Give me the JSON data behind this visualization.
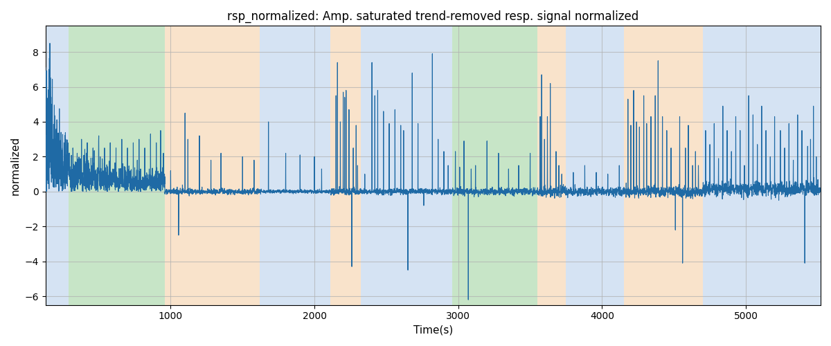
{
  "title": "rsp_normalized: Amp. saturated trend-removed resp. signal normalized",
  "xlabel": "Time(s)",
  "ylabel": "normalized",
  "xlim": [
    130,
    5520
  ],
  "ylim": [
    -6.5,
    9.5
  ],
  "line_color": "#1f6aa5",
  "line_width": 0.8,
  "bands": [
    {
      "xmin": 130,
      "xmax": 290,
      "color": "#adc8e8",
      "alpha": 0.5
    },
    {
      "xmin": 290,
      "xmax": 960,
      "color": "#90cc90",
      "alpha": 0.5
    },
    {
      "xmin": 960,
      "xmax": 1620,
      "color": "#f5c898",
      "alpha": 0.5
    },
    {
      "xmin": 1620,
      "xmax": 2110,
      "color": "#adc8e8",
      "alpha": 0.5
    },
    {
      "xmin": 2110,
      "xmax": 2320,
      "color": "#f5c898",
      "alpha": 0.5
    },
    {
      "xmin": 2320,
      "xmax": 2960,
      "color": "#adc8e8",
      "alpha": 0.5
    },
    {
      "xmin": 2960,
      "xmax": 3080,
      "color": "#90cc90",
      "alpha": 0.5
    },
    {
      "xmin": 3080,
      "xmax": 3550,
      "color": "#90cc90",
      "alpha": 0.5
    },
    {
      "xmin": 3550,
      "xmax": 3750,
      "color": "#f5c898",
      "alpha": 0.5
    },
    {
      "xmin": 3750,
      "xmax": 4150,
      "color": "#adc8e8",
      "alpha": 0.5
    },
    {
      "xmin": 4150,
      "xmax": 4700,
      "color": "#f5c898",
      "alpha": 0.5
    },
    {
      "xmin": 4700,
      "xmax": 5520,
      "color": "#adc8e8",
      "alpha": 0.5
    }
  ],
  "yticks": [
    -6,
    -4,
    -2,
    0,
    2,
    4,
    6,
    8
  ],
  "xticks": [
    1000,
    2000,
    3000,
    4000,
    5000
  ],
  "grid_color": "#b0b0b0",
  "grid_alpha": 0.7,
  "grid_linewidth": 0.8,
  "title_fontsize": 12,
  "label_fontsize": 11
}
